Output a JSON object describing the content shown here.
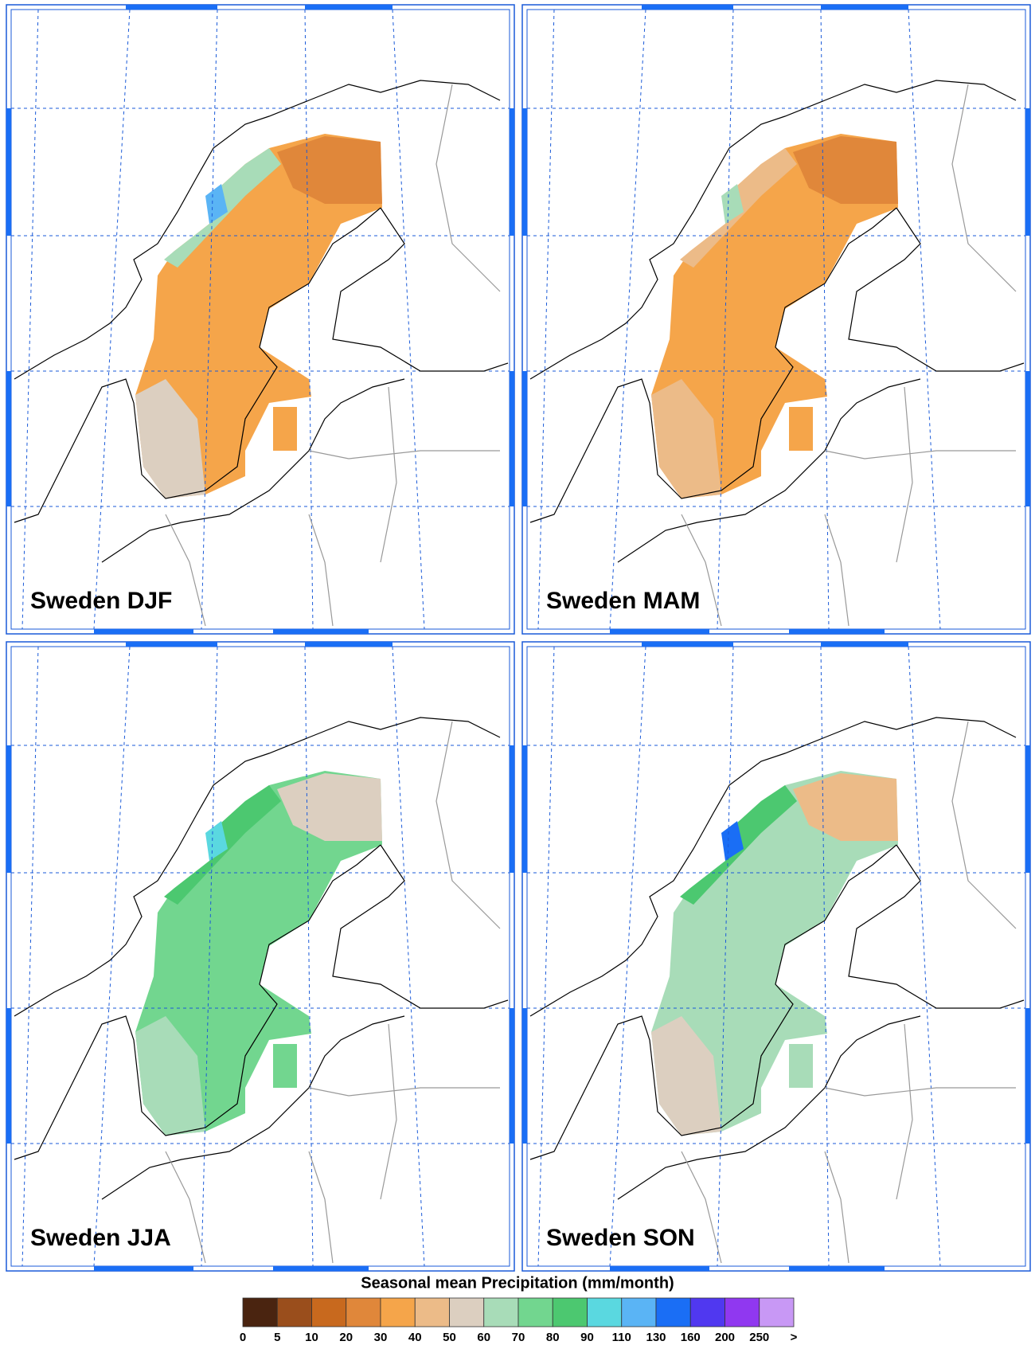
{
  "panels": [
    {
      "label": "Sweden DJF"
    },
    {
      "label": "Sweden MAM"
    },
    {
      "label": "Sweden JJA"
    },
    {
      "label": "Sweden SON"
    }
  ],
  "colorbar": {
    "title": "Seasonal mean Precipitation (mm/month)",
    "labels": [
      "0",
      "5",
      "10",
      "20",
      "30",
      "40",
      "50",
      "60",
      "70",
      "80",
      "90",
      "110",
      "130",
      "160",
      "200",
      "250",
      ">"
    ],
    "colors": [
      "#4a2410",
      "#9a4e1c",
      "#c8691e",
      "#e0873a",
      "#f5a54a",
      "#ecbb88",
      "#dccfc0",
      "#a8dcb8",
      "#72d68f",
      "#4cc870",
      "#5ad8e0",
      "#5ab4f5",
      "#1a6ef5",
      "#5038f0",
      "#9038f0",
      "#c898f5"
    ]
  }
}
